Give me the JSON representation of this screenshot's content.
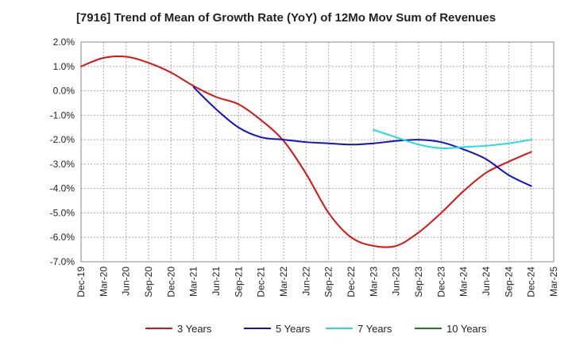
{
  "chart_data": {
    "type": "line",
    "title": "[7916]  Trend of Mean of Growth Rate (YoY) of 12Mo Mov Sum of Revenues",
    "categories": [
      "Dec-19",
      "Mar-20",
      "Jun-20",
      "Sep-20",
      "Dec-20",
      "Mar-21",
      "Jun-21",
      "Sep-21",
      "Dec-21",
      "Mar-22",
      "Jun-22",
      "Sep-22",
      "Dec-22",
      "Mar-23",
      "Jun-23",
      "Sep-23",
      "Dec-23",
      "Mar-24",
      "Jun-24",
      "Sep-24",
      "Dec-24",
      "Mar-25"
    ],
    "y_ticks": [
      2.0,
      1.0,
      0.0,
      -1.0,
      -2.0,
      -3.0,
      -4.0,
      -5.0,
      -6.0,
      -7.0
    ],
    "y_tick_labels": [
      "2.0%",
      "1.0%",
      "0.0%",
      "-1.0%",
      "-2.0%",
      "-3.0%",
      "-4.0%",
      "-5.0%",
      "-6.0%",
      "-7.0%"
    ],
    "ylim": [
      -7.0,
      2.0
    ],
    "grid": true,
    "legend_position": "bottom",
    "series": [
      {
        "name": "3 Years",
        "color": "#dd1111",
        "values": [
          1.0,
          1.35,
          1.4,
          1.15,
          0.75,
          0.2,
          -0.25,
          -0.55,
          -1.2,
          -2.05,
          -3.4,
          -5.0,
          -6.0,
          -6.35,
          -6.35,
          -5.8,
          -5.0,
          -4.1,
          -3.35,
          -2.9,
          -2.5,
          null
        ]
      },
      {
        "name": "5 Years",
        "color": "#1111cc",
        "values": [
          null,
          null,
          null,
          null,
          null,
          0.15,
          -0.75,
          -1.5,
          -1.9,
          -2.0,
          -2.1,
          -2.15,
          -2.2,
          -2.15,
          -2.05,
          -2.0,
          -2.1,
          -2.4,
          -2.8,
          -3.45,
          -3.9,
          null
        ]
      },
      {
        "name": "7 Years",
        "color": "#22dddd",
        "values": [
          null,
          null,
          null,
          null,
          null,
          null,
          null,
          null,
          null,
          null,
          null,
          null,
          null,
          -1.6,
          -1.9,
          -2.2,
          -2.35,
          -2.3,
          -2.25,
          -2.15,
          -2.0,
          null
        ]
      },
      {
        "name": "10 Years",
        "color": "#118811",
        "values": [
          null,
          null,
          null,
          null,
          null,
          null,
          null,
          null,
          null,
          null,
          null,
          null,
          null,
          null,
          null,
          null,
          null,
          null,
          null,
          null,
          null,
          null
        ]
      }
    ]
  }
}
